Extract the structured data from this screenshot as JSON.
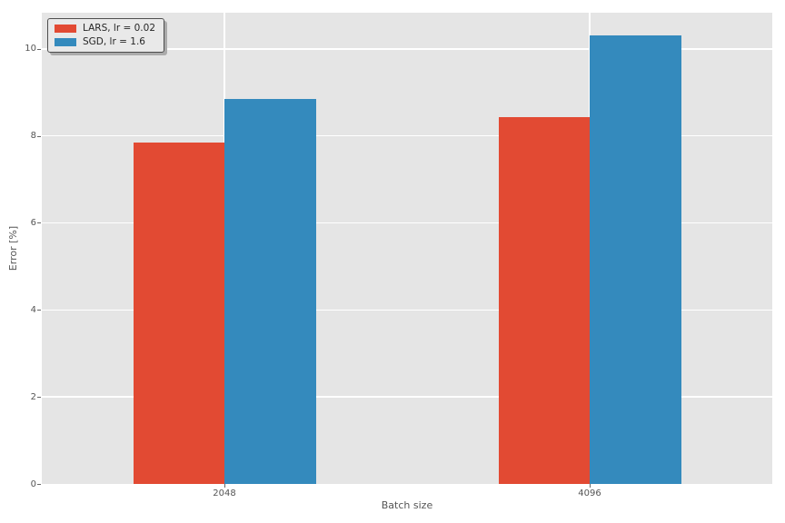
{
  "chart_data": {
    "type": "bar",
    "title": "",
    "xlabel": "Batch size",
    "ylabel": "Error [%]",
    "categories": [
      "2048",
      "4096"
    ],
    "series": [
      {
        "name": "LARS, lr = 0.02",
        "color": "#E24A33",
        "values": [
          7.85,
          8.43
        ]
      },
      {
        "name": "SGD, lr = 1.6",
        "color": "#348ABD",
        "values": [
          8.85,
          10.3
        ]
      }
    ],
    "ylim": [
      0,
      10.83
    ],
    "yticks": [
      0,
      2,
      4,
      6,
      8,
      10
    ],
    "grid": true,
    "legend_position": "upper left",
    "bar_group_width_fraction": 0.5,
    "style": {
      "figure_background": "#ffffff",
      "plot_background": "#e5e5e5",
      "grid_color": "#ffffff",
      "tick_color": "#555555",
      "label_color": "#555555",
      "legend_background": "#e9e9e9",
      "legend_border": "#4d4d4d",
      "legend_text": "#262626"
    }
  }
}
